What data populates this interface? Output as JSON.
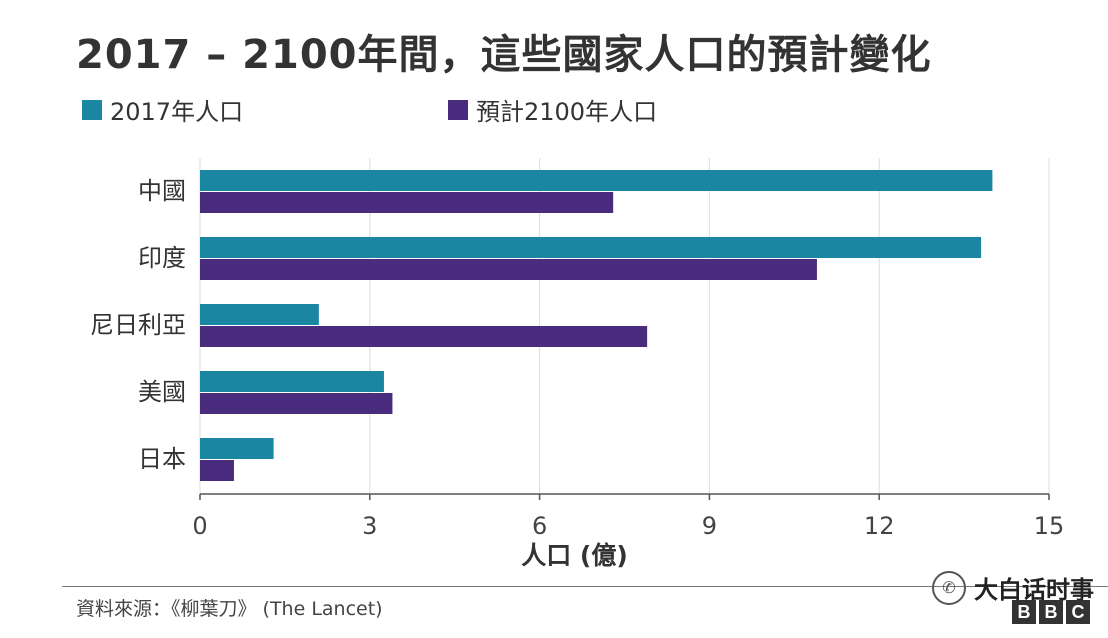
{
  "chart_data": {
    "type": "bar",
    "orientation": "horizontal",
    "title": "2017 – 2100年間，這些國家人口的預計變化",
    "categories": [
      "中國",
      "印度",
      "尼日利亞",
      "美國",
      "日本"
    ],
    "series": [
      {
        "name": "2017年人口",
        "color": "#1b86a1",
        "values": [
          14.0,
          13.8,
          2.1,
          3.25,
          1.3
        ]
      },
      {
        "name": "預計2100年人口",
        "color": "#4a2c7e",
        "values": [
          7.3,
          10.9,
          7.9,
          3.4,
          0.6
        ]
      }
    ],
    "xlabel": "人口 (億)",
    "xlim": [
      0,
      15
    ],
    "xticks": [
      0,
      3,
      6,
      9,
      12,
      15
    ],
    "grid": true,
    "legend_position": "top-left"
  },
  "source": "資料來源：《柳葉刀》 (The Lancet)",
  "watermark": {
    "text": "大白话时事",
    "icon": "wechat-icon",
    "logo_letters": [
      "B",
      "B",
      "C"
    ]
  }
}
